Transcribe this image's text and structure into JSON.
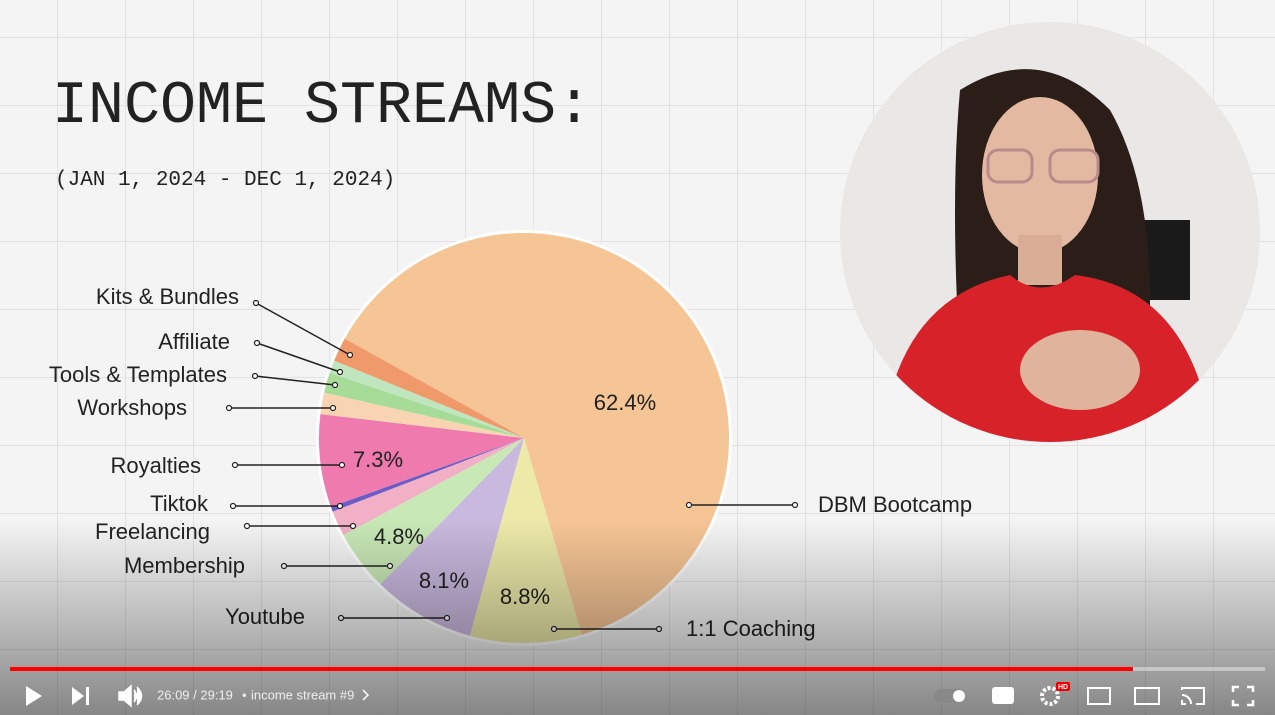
{
  "chart_data": {
    "type": "pie",
    "title": "INCOME STREAMS:",
    "subtitle": "(JAN 1, 2024 - DEC 1, 2024)",
    "categories": [
      "DBM Bootcamp",
      "1:1 Coaching",
      "Youtube",
      "Membership",
      "Freelancing",
      "Tiktok",
      "Royalties",
      "Workshops",
      "Tools & Templates",
      "Affiliate",
      "Kits & Bundles"
    ],
    "values": [
      62.4,
      8.8,
      8.1,
      4.8,
      2.0,
      0.4,
      7.3,
      1.7,
      1.6,
      1.0,
      1.9
    ],
    "value_labels": [
      "62.4%",
      "8.8%",
      "8.1%",
      "4.8%",
      null,
      null,
      "7.3%",
      null,
      null,
      null,
      null
    ],
    "colors": [
      "#f6c595",
      "#ece9a9",
      "#c9b9de",
      "#c8e8b6",
      "#f1b0c5",
      "#6b5cc6",
      "#ee7aae",
      "#f8d4b2",
      "#a6dc98",
      "#bfe6bf",
      "#f09a6c"
    ]
  },
  "player": {
    "time": "26:09 / 29:19",
    "chapter": "income stream #9",
    "badge": "HD"
  }
}
